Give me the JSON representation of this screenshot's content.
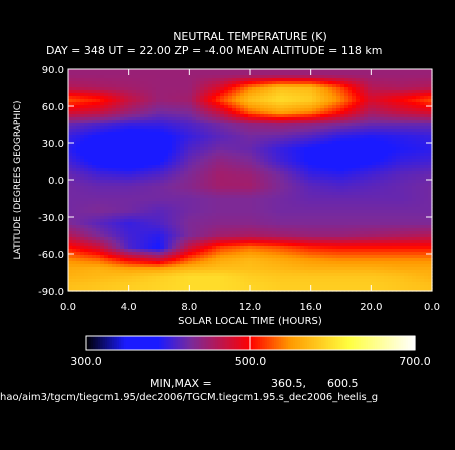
{
  "title": "NEUTRAL TEMPERATURE (K)",
  "subtitle": "DAY = 348   UT = 22.00   ZP =   -4.00   MEAN ALTITUDE = 118 km",
  "footer_path": "hao/aim3/tgcm/tiegcm1.95/dec2006/TGCM.tiegcm1.95.s_dec2006_heelis_g",
  "minmax_label": "MIN,MAX =",
  "min_value": "360.5,",
  "max_value": "600.5",
  "chart_data": {
    "type": "heatmap",
    "title": "NEUTRAL TEMPERATURE (K)",
    "xlabel": "SOLAR LOCAL TIME (HOURS)",
    "ylabel": "LATITUDE (DEGREES GEOGRAPHIC)",
    "xlim": [
      0,
      24
    ],
    "ylim": [
      -90,
      90
    ],
    "x_tick_labels": [
      "0.0",
      "4.0",
      "8.0",
      "12.0",
      "16.0",
      "20.0",
      "0.0"
    ],
    "y_tick_labels": [
      "90.0",
      "60.0",
      "30.0",
      "0.0",
      "-30.0",
      "-60.0",
      "-90.0"
    ],
    "x": [
      0,
      2,
      4,
      6,
      8,
      10,
      12,
      14,
      16,
      18,
      20,
      22,
      24
    ],
    "y": [
      85,
      75,
      65,
      55,
      45,
      35,
      25,
      15,
      5,
      -5,
      -15,
      -25,
      -35,
      -45,
      -55,
      -65,
      -72,
      -78,
      -85
    ],
    "z": [
      [
        445,
        445,
        445,
        445,
        445,
        445,
        445,
        445,
        445,
        445,
        445,
        445,
        445
      ],
      [
        460,
        455,
        450,
        445,
        445,
        480,
        540,
        575,
        570,
        520,
        460,
        455,
        460
      ],
      [
        525,
        510,
        470,
        445,
        450,
        520,
        575,
        595,
        585,
        540,
        480,
        500,
        525
      ],
      [
        480,
        470,
        445,
        425,
        430,
        470,
        530,
        555,
        540,
        500,
        455,
        470,
        480
      ],
      [
        420,
        410,
        400,
        400,
        410,
        425,
        440,
        445,
        440,
        430,
        420,
        420,
        420
      ],
      [
        400,
        385,
        375,
        380,
        400,
        415,
        425,
        420,
        410,
        395,
        390,
        395,
        400
      ],
      [
        395,
        370,
        360,
        375,
        410,
        425,
        420,
        400,
        385,
        375,
        380,
        390,
        395
      ],
      [
        405,
        380,
        370,
        385,
        420,
        440,
        430,
        405,
        385,
        375,
        385,
        400,
        405
      ],
      [
        420,
        405,
        400,
        410,
        430,
        450,
        445,
        425,
        400,
        395,
        405,
        415,
        420
      ],
      [
        425,
        420,
        420,
        425,
        435,
        450,
        450,
        430,
        415,
        410,
        415,
        420,
        425
      ],
      [
        425,
        425,
        425,
        425,
        425,
        430,
        430,
        425,
        420,
        420,
        420,
        420,
        425
      ],
      [
        425,
        430,
        425,
        415,
        425,
        430,
        430,
        425,
        425,
        425,
        425,
        425,
        425
      ],
      [
        430,
        415,
        400,
        410,
        430,
        435,
        435,
        430,
        430,
        430,
        430,
        430,
        430
      ],
      [
        460,
        430,
        405,
        395,
        430,
        450,
        455,
        450,
        445,
        445,
        450,
        455,
        460
      ],
      [
        505,
        475,
        410,
        385,
        470,
        520,
        535,
        525,
        510,
        505,
        505,
        505,
        505
      ],
      [
        545,
        535,
        500,
        480,
        530,
        560,
        570,
        560,
        550,
        545,
        545,
        545,
        545
      ],
      [
        560,
        565,
        555,
        555,
        570,
        575,
        575,
        570,
        565,
        565,
        565,
        560,
        560
      ],
      [
        565,
        570,
        575,
        585,
        595,
        595,
        585,
        580,
        580,
        580,
        580,
        575,
        565
      ],
      [
        575,
        580,
        585,
        590,
        595,
        595,
        590,
        585,
        585,
        585,
        585,
        580,
        575
      ]
    ],
    "colorbar": {
      "min": 300.0,
      "max": 700.0,
      "mid": 500.0,
      "tick_labels": [
        "300.0",
        "500.0",
        "700.0"
      ]
    },
    "colors": {
      "low": "#000000",
      "blue": "#1a1aff",
      "purple": "#7a2a9a",
      "red": "#ff0000",
      "orange": "#ff9900",
      "yellow": "#ffff40",
      "high": "#ffffff"
    }
  }
}
